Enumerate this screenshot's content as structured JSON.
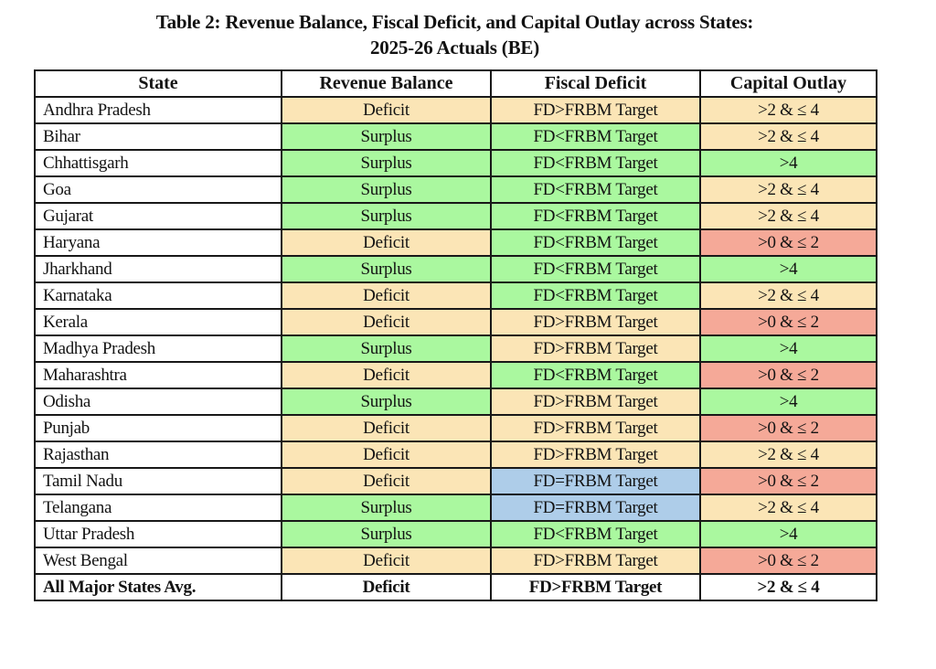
{
  "title": {
    "line1": "Table 2: Revenue Balance, Fiscal Deficit, and Capital Outlay across States:",
    "line2": "2025-26 Actuals (BE)"
  },
  "table": {
    "columns": [
      "State",
      "Revenue Balance",
      "Fiscal Deficit",
      "Capital Outlay"
    ],
    "colors": {
      "tan": "#fbe5b6",
      "green": "#aaf89f",
      "salmon": "#f5a998",
      "blue": "#aecde9",
      "none": "#ffffff"
    },
    "rows": [
      {
        "state": "Andhra Pradesh",
        "bold": false,
        "cells": [
          {
            "text": "Deficit",
            "color": "tan"
          },
          {
            "text": "FD>FRBM Target",
            "color": "tan"
          },
          {
            "text": ">2 & ≤ 4",
            "color": "tan"
          }
        ]
      },
      {
        "state": "Bihar",
        "bold": false,
        "cells": [
          {
            "text": "Surplus",
            "color": "green"
          },
          {
            "text": "FD<FRBM Target",
            "color": "green"
          },
          {
            "text": ">2 & ≤ 4",
            "color": "tan"
          }
        ]
      },
      {
        "state": "Chhattisgarh",
        "bold": false,
        "cells": [
          {
            "text": "Surplus",
            "color": "green"
          },
          {
            "text": "FD<FRBM Target",
            "color": "green"
          },
          {
            "text": ">4",
            "color": "green"
          }
        ]
      },
      {
        "state": "Goa",
        "bold": false,
        "cells": [
          {
            "text": "Surplus",
            "color": "green"
          },
          {
            "text": "FD<FRBM Target",
            "color": "green"
          },
          {
            "text": ">2 & ≤ 4",
            "color": "tan"
          }
        ]
      },
      {
        "state": "Gujarat",
        "bold": false,
        "cells": [
          {
            "text": "Surplus",
            "color": "green"
          },
          {
            "text": "FD<FRBM Target",
            "color": "green"
          },
          {
            "text": ">2 & ≤ 4",
            "color": "tan"
          }
        ]
      },
      {
        "state": "Haryana",
        "bold": false,
        "cells": [
          {
            "text": "Deficit",
            "color": "tan"
          },
          {
            "text": "FD<FRBM Target",
            "color": "green"
          },
          {
            "text": ">0 & ≤ 2",
            "color": "salmon"
          }
        ]
      },
      {
        "state": "Jharkhand",
        "bold": false,
        "cells": [
          {
            "text": "Surplus",
            "color": "green"
          },
          {
            "text": "FD<FRBM Target",
            "color": "green"
          },
          {
            "text": ">4",
            "color": "green"
          }
        ]
      },
      {
        "state": "Karnataka",
        "bold": false,
        "cells": [
          {
            "text": "Deficit",
            "color": "tan"
          },
          {
            "text": "FD<FRBM Target",
            "color": "green"
          },
          {
            "text": ">2 & ≤ 4",
            "color": "tan"
          }
        ]
      },
      {
        "state": "Kerala",
        "bold": false,
        "cells": [
          {
            "text": "Deficit",
            "color": "tan"
          },
          {
            "text": "FD>FRBM Target",
            "color": "tan"
          },
          {
            "text": ">0 & ≤ 2",
            "color": "salmon"
          }
        ]
      },
      {
        "state": "Madhya Pradesh",
        "bold": false,
        "cells": [
          {
            "text": "Surplus",
            "color": "green"
          },
          {
            "text": "FD>FRBM Target",
            "color": "tan"
          },
          {
            "text": ">4",
            "color": "green"
          }
        ]
      },
      {
        "state": "Maharashtra",
        "bold": false,
        "cells": [
          {
            "text": "Deficit",
            "color": "tan"
          },
          {
            "text": "FD<FRBM Target",
            "color": "green"
          },
          {
            "text": ">0 & ≤ 2",
            "color": "salmon"
          }
        ]
      },
      {
        "state": "Odisha",
        "bold": false,
        "cells": [
          {
            "text": "Surplus",
            "color": "green"
          },
          {
            "text": "FD>FRBM Target",
            "color": "tan"
          },
          {
            "text": ">4",
            "color": "green"
          }
        ]
      },
      {
        "state": "Punjab",
        "bold": false,
        "cells": [
          {
            "text": "Deficit",
            "color": "tan"
          },
          {
            "text": "FD>FRBM Target",
            "color": "tan"
          },
          {
            "text": ">0 & ≤ 2",
            "color": "salmon"
          }
        ]
      },
      {
        "state": "Rajasthan",
        "bold": false,
        "cells": [
          {
            "text": "Deficit",
            "color": "tan"
          },
          {
            "text": "FD>FRBM Target",
            "color": "tan"
          },
          {
            "text": ">2 & ≤ 4",
            "color": "tan"
          }
        ]
      },
      {
        "state": "Tamil Nadu",
        "bold": false,
        "cells": [
          {
            "text": "Deficit",
            "color": "tan"
          },
          {
            "text": "FD=FRBM Target",
            "color": "blue"
          },
          {
            "text": ">0 & ≤ 2",
            "color": "salmon"
          }
        ]
      },
      {
        "state": "Telangana",
        "bold": false,
        "cells": [
          {
            "text": "Surplus",
            "color": "green"
          },
          {
            "text": "FD=FRBM Target",
            "color": "blue"
          },
          {
            "text": ">2 & ≤ 4",
            "color": "tan"
          }
        ]
      },
      {
        "state": "Uttar Pradesh",
        "bold": false,
        "cells": [
          {
            "text": "Surplus",
            "color": "green"
          },
          {
            "text": "FD<FRBM Target",
            "color": "green"
          },
          {
            "text": ">4",
            "color": "green"
          }
        ]
      },
      {
        "state": "West Bengal",
        "bold": false,
        "cells": [
          {
            "text": "Deficit",
            "color": "tan"
          },
          {
            "text": "FD>FRBM Target",
            "color": "tan"
          },
          {
            "text": ">0 & ≤ 2",
            "color": "salmon"
          }
        ]
      },
      {
        "state": "All Major States Avg.",
        "bold": true,
        "cells": [
          {
            "text": "Deficit",
            "color": "none"
          },
          {
            "text": "FD>FRBM Target",
            "color": "none"
          },
          {
            "text": ">2 & ≤ 4",
            "color": "none"
          }
        ]
      }
    ]
  }
}
